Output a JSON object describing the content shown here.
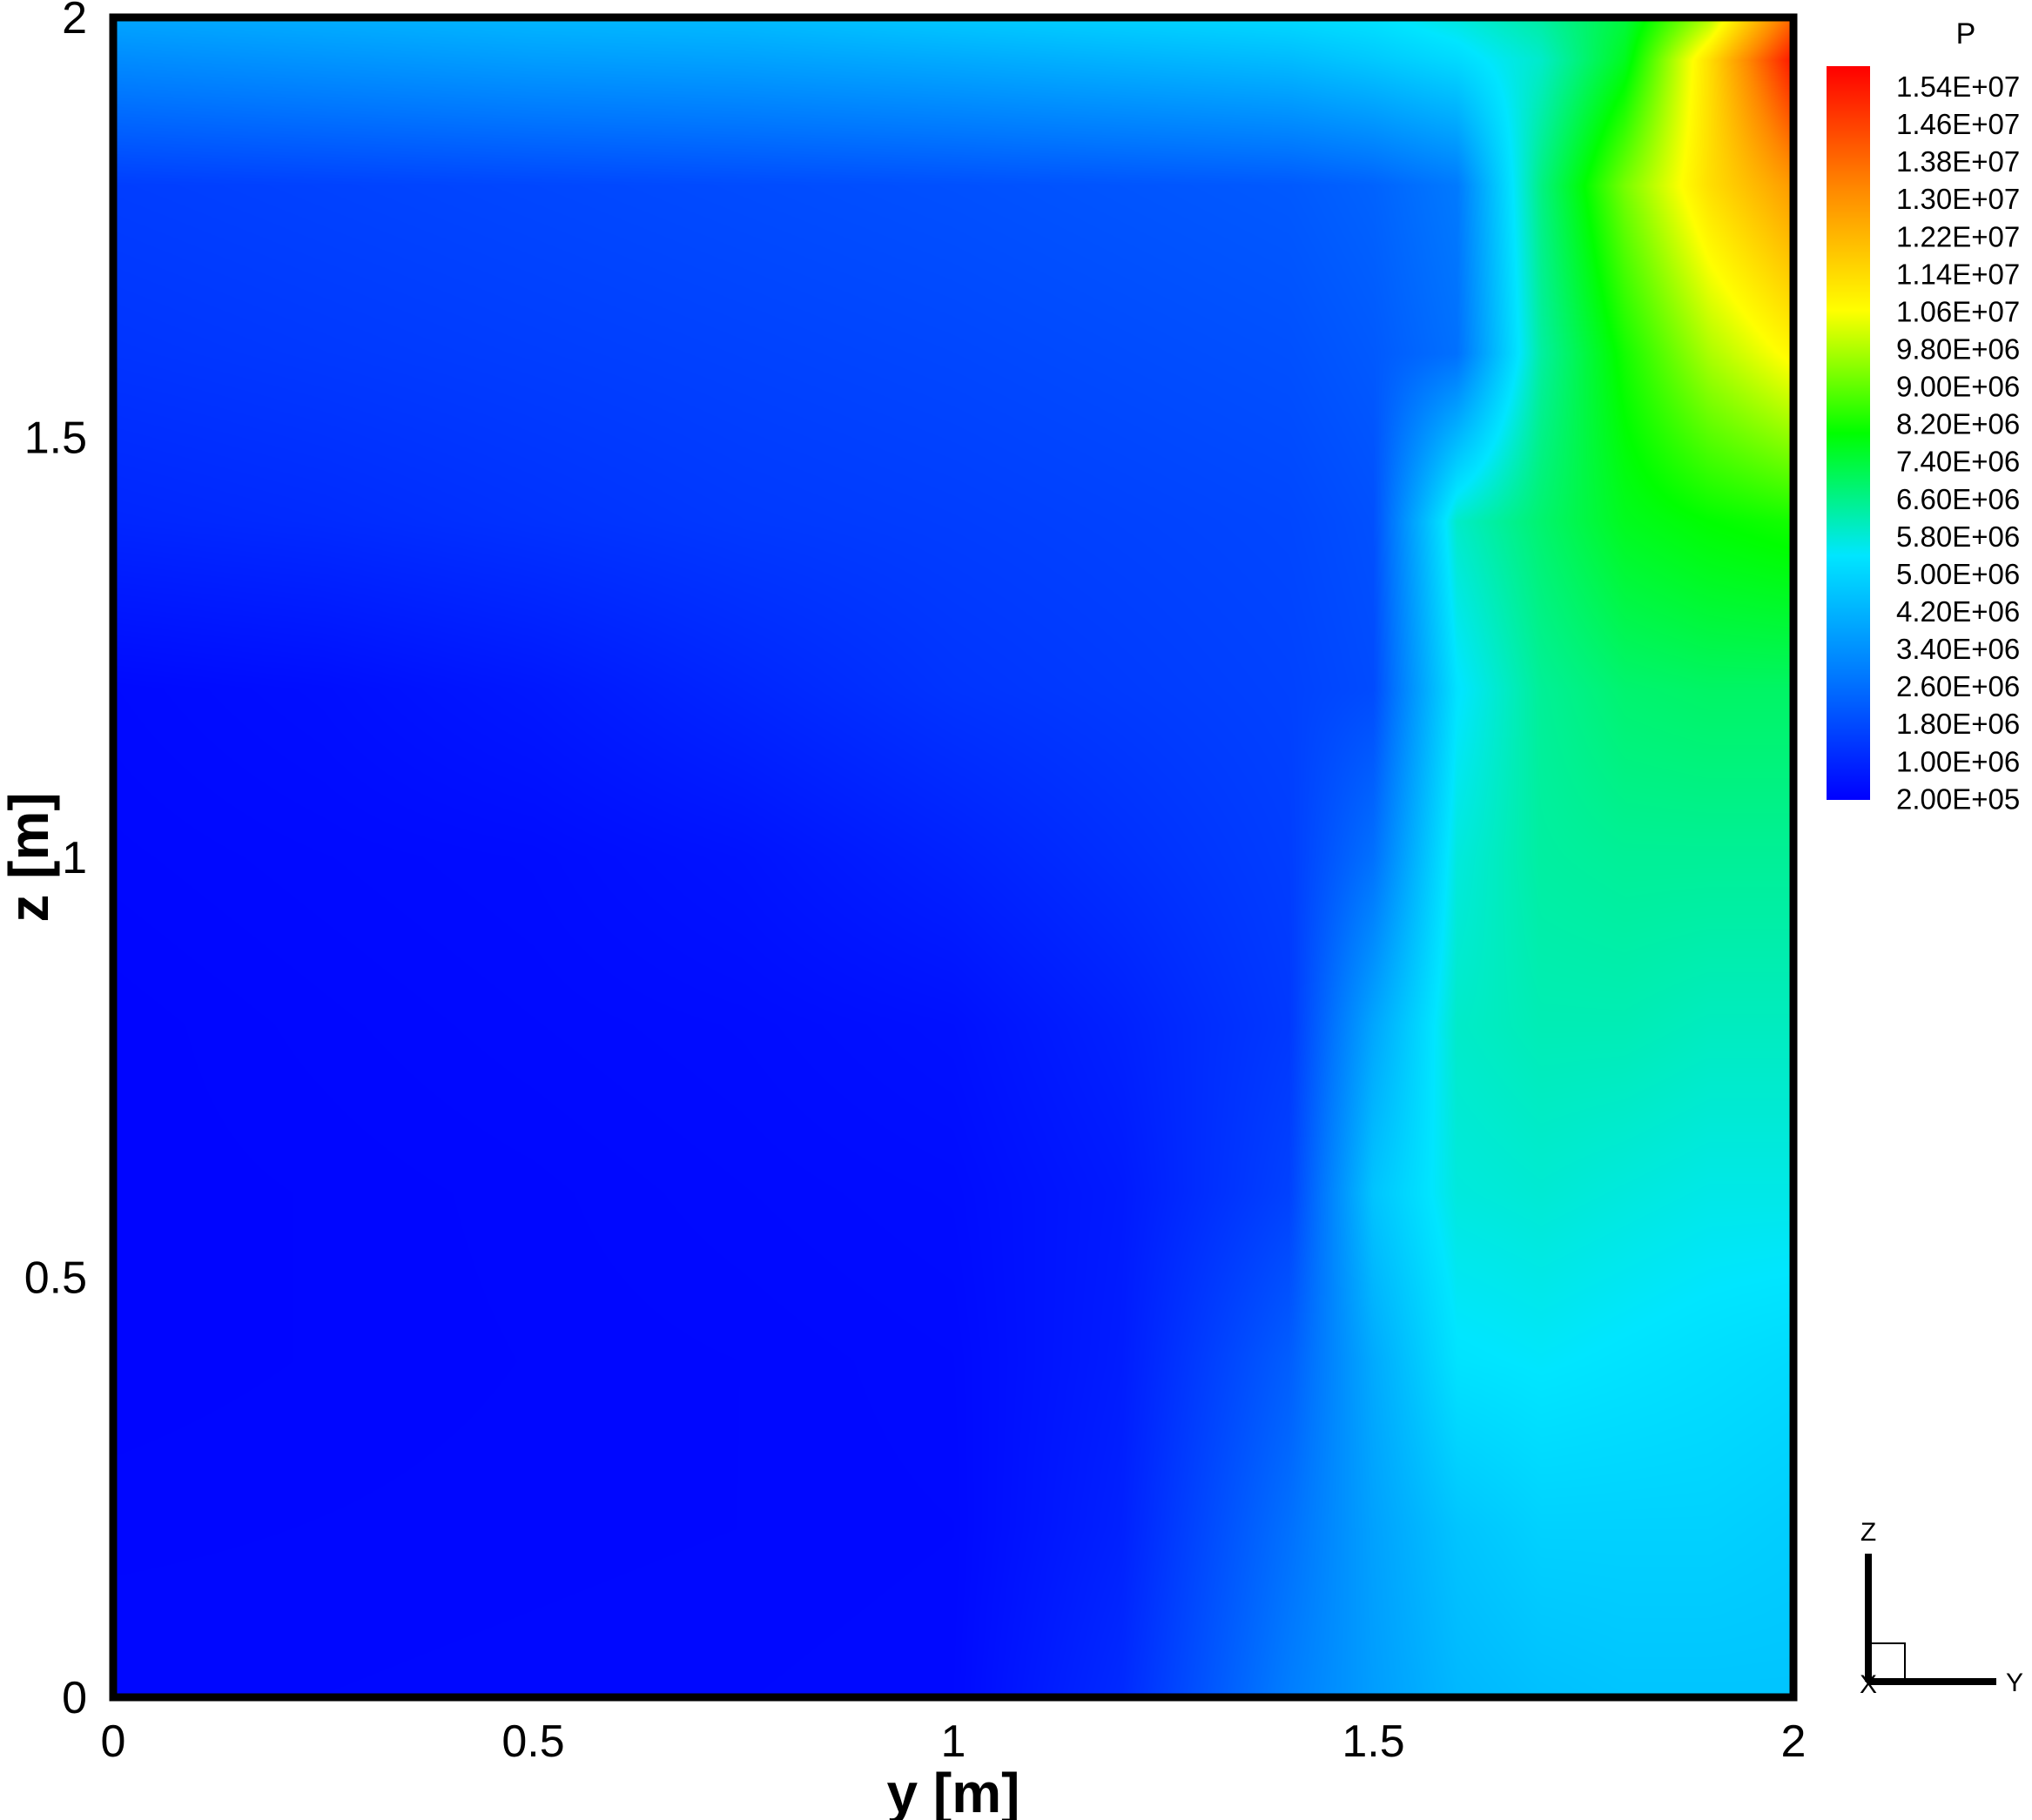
{
  "chart_data": {
    "type": "heatmap",
    "title": "",
    "xlabel": "y [m]",
    "ylabel": "z [m]",
    "xlim": [
      0,
      2
    ],
    "ylim": [
      0,
      2
    ],
    "x_ticks": [
      "0",
      "0.5",
      "1",
      "1.5",
      "2"
    ],
    "y_ticks": [
      "0",
      "0.5",
      "1",
      "1.5",
      "2"
    ],
    "x_tick_values": [
      0,
      0.5,
      1,
      1.5,
      2
    ],
    "y_tick_values": [
      0,
      0.5,
      1,
      1.5,
      2
    ],
    "colorbar": {
      "title": "P",
      "min": 200000,
      "max": 15400000,
      "levels": [
        "1.54E+07",
        "1.46E+07",
        "1.38E+07",
        "1.30E+07",
        "1.22E+07",
        "1.14E+07",
        "1.06E+07",
        "9.80E+06",
        "9.00E+06",
        "8.20E+06",
        "7.40E+06",
        "6.60E+06",
        "5.80E+06",
        "5.00E+06",
        "4.20E+06",
        "3.40E+06",
        "2.60E+06",
        "1.80E+06",
        "1.00E+06",
        "2.00E+05"
      ],
      "colormap": [
        "#0000ff",
        "#0077ff",
        "#00e6ff",
        "#00ff00",
        "#ffff00",
        "#ff8800",
        "#ff0000"
      ]
    },
    "field_samples": {
      "y": [
        0,
        0.25,
        0.5,
        0.75,
        1.0,
        1.2,
        1.4,
        1.5,
        1.6,
        1.7,
        1.8,
        1.9,
        2.0
      ],
      "z": [
        2.0,
        1.95,
        1.8,
        1.6,
        1.4,
        1.2,
        1.0,
        0.8,
        0.6,
        0.4,
        0.2,
        0.0
      ],
      "P": [
        [
          3800000,
          4000000,
          4200000,
          4300000,
          4600000,
          4800000,
          5000000,
          5200000,
          5600000,
          6200000,
          7200000,
          9500000,
          13500000
        ],
        [
          3200000,
          3400000,
          3600000,
          3700000,
          3900000,
          4100000,
          4300000,
          4600000,
          5000000,
          5800000,
          7500000,
          11000000,
          15000000
        ],
        [
          1500000,
          1600000,
          1700000,
          1800000,
          1900000,
          2000000,
          2100000,
          2300000,
          2800000,
          6500000,
          9000000,
          11000000,
          12500000
        ],
        [
          1300000,
          1400000,
          1500000,
          1600000,
          1700000,
          1800000,
          1900000,
          2100000,
          2600000,
          6200000,
          8000000,
          9500000,
          10500000
        ],
        [
          1000000,
          1100000,
          1250000,
          1400000,
          1500000,
          1600000,
          1700000,
          1900000,
          5800000,
          6700000,
          7500000,
          7800000,
          8000000
        ],
        [
          400000,
          500000,
          700000,
          1000000,
          1300000,
          1450000,
          1600000,
          1800000,
          5200000,
          6300000,
          6700000,
          6800000,
          6800000
        ],
        [
          350000,
          400000,
          450000,
          600000,
          900000,
          1200000,
          1500000,
          2600000,
          5600000,
          6200000,
          6300000,
          6300000,
          6300000
        ],
        [
          300000,
          350000,
          400000,
          450000,
          550000,
          900000,
          1400000,
          3800000,
          5800000,
          6000000,
          6000000,
          5900000,
          5900000
        ],
        [
          300000,
          320000,
          350000,
          400000,
          450000,
          750000,
          1600000,
          4500000,
          5600000,
          5700000,
          5600000,
          5500000,
          5500000
        ],
        [
          300000,
          320000,
          340000,
          360000,
          400000,
          800000,
          2200000,
          3900000,
          5200000,
          5300000,
          5200000,
          5100000,
          5000000
        ],
        [
          330000,
          340000,
          350000,
          360000,
          380000,
          900000,
          2600000,
          3700000,
          4500000,
          4800000,
          4800000,
          4800000,
          4700000
        ],
        [
          360000,
          360000,
          370000,
          380000,
          400000,
          1100000,
          2900000,
          3600000,
          4200000,
          4400000,
          4500000,
          4500000,
          4500000
        ]
      ]
    }
  },
  "triad": {
    "z_label": "Z",
    "y_label": "Y",
    "x_label": "X"
  }
}
